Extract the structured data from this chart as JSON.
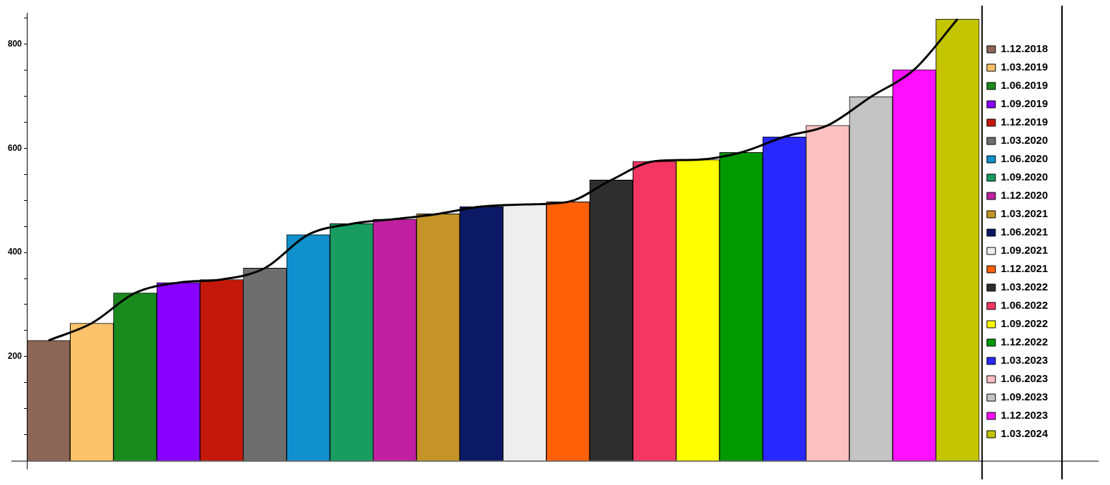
{
  "chart_data": {
    "type": "bar",
    "categories": [
      null,
      null,
      null,
      null,
      null,
      null,
      null,
      null,
      null,
      null,
      null,
      null,
      null,
      null,
      null,
      null,
      null,
      null,
      null,
      null,
      null,
      null
    ],
    "series": [
      {
        "name": "1.12.2018",
        "color": "#8c6656",
        "values": [
          231,
          null,
          null,
          null,
          null,
          null,
          null,
          null,
          null,
          null,
          null,
          null,
          null,
          null,
          null,
          null,
          null,
          null,
          null,
          null,
          null,
          null
        ]
      },
      {
        "name": "1.03.2019",
        "color": "#fcc26a",
        "values": [
          null,
          264,
          null,
          null,
          null,
          null,
          null,
          null,
          null,
          null,
          null,
          null,
          null,
          null,
          null,
          null,
          null,
          null,
          null,
          null,
          null,
          null
        ]
      },
      {
        "name": "1.06.2019",
        "color": "#1a8a1f",
        "values": [
          null,
          null,
          322,
          null,
          null,
          null,
          null,
          null,
          null,
          null,
          null,
          null,
          null,
          null,
          null,
          null,
          null,
          null,
          null,
          null,
          null,
          null
        ]
      },
      {
        "name": "1.09.2019",
        "color": "#8800ff",
        "values": [
          null,
          null,
          null,
          342,
          null,
          null,
          null,
          null,
          null,
          null,
          null,
          null,
          null,
          null,
          null,
          null,
          null,
          null,
          null,
          null,
          null,
          null
        ]
      },
      {
        "name": "1.12.2019",
        "color": "#c4180a",
        "values": [
          null,
          null,
          null,
          null,
          348,
          null,
          null,
          null,
          null,
          null,
          null,
          null,
          null,
          null,
          null,
          null,
          null,
          null,
          null,
          null,
          null,
          null
        ]
      },
      {
        "name": "1.03.2020",
        "color": "#6e6e6e",
        "values": [
          null,
          null,
          null,
          null,
          null,
          370,
          null,
          null,
          null,
          null,
          null,
          null,
          null,
          null,
          null,
          null,
          null,
          null,
          null,
          null,
          null,
          null
        ]
      },
      {
        "name": "1.06.2020",
        "color": "#1090cc",
        "values": [
          null,
          null,
          null,
          null,
          null,
          null,
          434,
          null,
          null,
          null,
          null,
          null,
          null,
          null,
          null,
          null,
          null,
          null,
          null,
          null,
          null,
          null
        ]
      },
      {
        "name": "1.09.2020",
        "color": "#199c60",
        "values": [
          null,
          null,
          null,
          null,
          null,
          null,
          null,
          455,
          null,
          null,
          null,
          null,
          null,
          null,
          null,
          null,
          null,
          null,
          null,
          null,
          null,
          null
        ]
      },
      {
        "name": "1.12.2020",
        "color": "#c020a0",
        "values": [
          null,
          null,
          null,
          null,
          null,
          null,
          null,
          null,
          464,
          null,
          null,
          null,
          null,
          null,
          null,
          null,
          null,
          null,
          null,
          null,
          null,
          null
        ]
      },
      {
        "name": "1.03.2021",
        "color": "#c49428",
        "values": [
          null,
          null,
          null,
          null,
          null,
          null,
          null,
          null,
          null,
          474,
          null,
          null,
          null,
          null,
          null,
          null,
          null,
          null,
          null,
          null,
          null,
          null
        ]
      },
      {
        "name": "1.06.2021",
        "color": "#0c1a66",
        "values": [
          null,
          null,
          null,
          null,
          null,
          null,
          null,
          null,
          null,
          null,
          488,
          null,
          null,
          null,
          null,
          null,
          null,
          null,
          null,
          null,
          null,
          null
        ]
      },
      {
        "name": "1.09.2021",
        "color": "#eeeeee",
        "values": [
          null,
          null,
          null,
          null,
          null,
          null,
          null,
          null,
          null,
          null,
          null,
          492,
          null,
          null,
          null,
          null,
          null,
          null,
          null,
          null,
          null,
          null
        ]
      },
      {
        "name": "1.12.2021",
        "color": "#ff6008",
        "values": [
          null,
          null,
          null,
          null,
          null,
          null,
          null,
          null,
          null,
          null,
          null,
          null,
          497,
          null,
          null,
          null,
          null,
          null,
          null,
          null,
          null,
          null
        ]
      },
      {
        "name": "1.03.2022",
        "color": "#2e2e2e",
        "values": [
          null,
          null,
          null,
          null,
          null,
          null,
          null,
          null,
          null,
          null,
          null,
          null,
          null,
          539,
          null,
          null,
          null,
          null,
          null,
          null,
          null,
          null
        ]
      },
      {
        "name": "1.06.2022",
        "color": "#f43662",
        "values": [
          null,
          null,
          null,
          null,
          null,
          null,
          null,
          null,
          null,
          null,
          null,
          null,
          null,
          null,
          575,
          null,
          null,
          null,
          null,
          null,
          null,
          null
        ]
      },
      {
        "name": "1.09.2022",
        "color": "#ffff00",
        "values": [
          null,
          null,
          null,
          null,
          null,
          null,
          null,
          null,
          null,
          null,
          null,
          null,
          null,
          null,
          null,
          578,
          null,
          null,
          null,
          null,
          null,
          null
        ]
      },
      {
        "name": "1.12.2022",
        "color": "#009900",
        "values": [
          null,
          null,
          null,
          null,
          null,
          null,
          null,
          null,
          null,
          null,
          null,
          null,
          null,
          null,
          null,
          null,
          592,
          null,
          null,
          null,
          null,
          null
        ]
      },
      {
        "name": "1.03.2023",
        "color": "#2828ff",
        "values": [
          null,
          null,
          null,
          null,
          null,
          null,
          null,
          null,
          null,
          null,
          null,
          null,
          null,
          null,
          null,
          null,
          null,
          622,
          null,
          null,
          null,
          null
        ]
      },
      {
        "name": "1.06.2023",
        "color": "#fcc0c0",
        "values": [
          null,
          null,
          null,
          null,
          null,
          null,
          null,
          null,
          null,
          null,
          null,
          null,
          null,
          null,
          null,
          null,
          null,
          null,
          644,
          null,
          null,
          null
        ]
      },
      {
        "name": "1.09.2023",
        "color": "#c4c4c4",
        "values": [
          null,
          null,
          null,
          null,
          null,
          null,
          null,
          null,
          null,
          null,
          null,
          null,
          null,
          null,
          null,
          null,
          null,
          null,
          null,
          699,
          null,
          null
        ]
      },
      {
        "name": "1.12.2023",
        "color": "#ff10ff",
        "values": [
          null,
          null,
          null,
          null,
          null,
          null,
          null,
          null,
          null,
          null,
          null,
          null,
          null,
          null,
          null,
          null,
          null,
          null,
          null,
          null,
          751,
          null
        ]
      },
      {
        "name": "1.03.2024",
        "color": "#c4c400",
        "values": [
          null,
          null,
          null,
          null,
          null,
          null,
          null,
          null,
          null,
          null,
          null,
          null,
          null,
          null,
          null,
          null,
          null,
          null,
          null,
          null,
          null,
          848
        ]
      },
      {
        "type": "line",
        "color": "#000000",
        "values": [
          231,
          264,
          322,
          342,
          348,
          370,
          434,
          455,
          464,
          474,
          488,
          492,
          497,
          539,
          575,
          578,
          592,
          622,
          644,
          699,
          751,
          848
        ]
      }
    ],
    "ylim": [
      0,
      860
    ],
    "yticks": [
      {
        "value": 50,
        "label": null
      },
      {
        "value": 100,
        "label": null
      },
      {
        "value": 150,
        "label": null
      },
      200,
      {
        "value": 250,
        "label": null
      },
      {
        "value": 300,
        "label": null
      },
      {
        "value": 350,
        "label": null
      },
      400,
      {
        "value": 450,
        "label": null
      },
      {
        "value": 500,
        "label": null
      },
      {
        "value": 550,
        "label": null
      },
      600,
      {
        "value": 650,
        "label": null
      },
      {
        "value": 700,
        "label": null
      },
      {
        "value": 750,
        "label": null
      },
      800,
      {
        "value": 850,
        "label": null
      }
    ],
    "grid": false,
    "legend": "right"
  }
}
